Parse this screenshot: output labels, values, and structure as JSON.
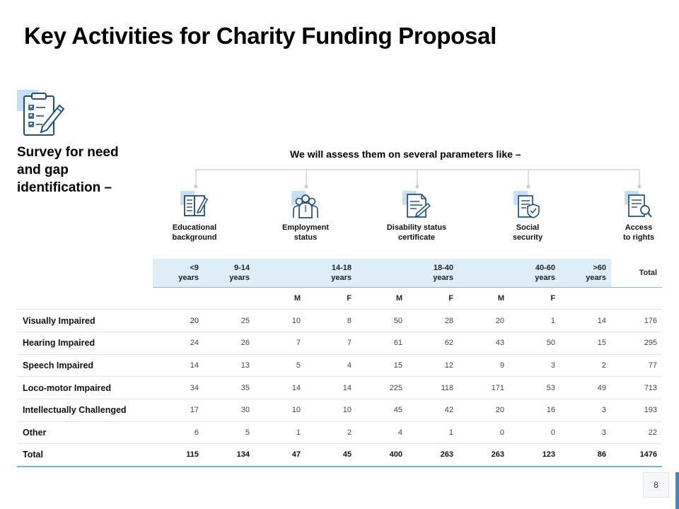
{
  "title": "Key Activities for Charity Funding Proposal",
  "survey": {
    "heading": "Survey for need and gap identification –",
    "icon": "clipboard-checklist-icon"
  },
  "assess_text": "We will assess them on several parameters like –",
  "parameters": [
    {
      "label": "Educational\nbackground",
      "icon": "book-icon"
    },
    {
      "label": "Employment\nstatus",
      "icon": "people-group-icon"
    },
    {
      "label": "Disability  status\ncertificate",
      "icon": "certificate-icon"
    },
    {
      "label": "Social\nsecurity",
      "icon": "shield-document-icon"
    },
    {
      "label": "Access\nto rights",
      "icon": "document-search-icon"
    }
  ],
  "table": {
    "age_headers": [
      "<9\nyears",
      "9-14\nyears",
      "14-18\nyears",
      "18-40\nyears",
      "40-60\nyears",
      ">60\nyears"
    ],
    "total_header": "Total",
    "gender_headers": [
      "M",
      "F",
      "M",
      "F",
      "M",
      "F"
    ],
    "rows": [
      {
        "label": "Visually Impaired",
        "values": [
          "20",
          "25",
          "10",
          "8",
          "50",
          "28",
          "20",
          "1",
          "14",
          "176"
        ]
      },
      {
        "label": "Hearing Impaired",
        "values": [
          "24",
          "26",
          "7",
          "7",
          "61",
          "62",
          "43",
          "50",
          "15",
          "295"
        ]
      },
      {
        "label": "Speech Impaired",
        "values": [
          "14",
          "13",
          "5",
          "4",
          "15",
          "12",
          "9",
          "3",
          "2",
          "77"
        ]
      },
      {
        "label": "Loco-motor  Impaired",
        "values": [
          "34",
          "35",
          "14",
          "14",
          "225",
          "118",
          "171",
          "53",
          "49",
          "713"
        ]
      },
      {
        "label": "Intellectually Challenged",
        "values": [
          "17",
          "30",
          "10",
          "10",
          "45",
          "42",
          "20",
          "16",
          "3",
          "193"
        ]
      },
      {
        "label": "Other",
        "values": [
          "6",
          "5",
          "1",
          "2",
          "4",
          "1",
          "0",
          "0",
          "3",
          "22"
        ]
      }
    ],
    "total_row": {
      "label": "Total",
      "values": [
        "115",
        "134",
        "47",
        "45",
        "400",
        "263",
        "263",
        "123",
        "86",
        "1476"
      ]
    }
  },
  "page_number": "8",
  "colors": {
    "accent": "#2e8fd6",
    "header_fill": "#ddeefa",
    "icon_square": "#c5e0f5",
    "icon_line": "#1f4e79"
  }
}
